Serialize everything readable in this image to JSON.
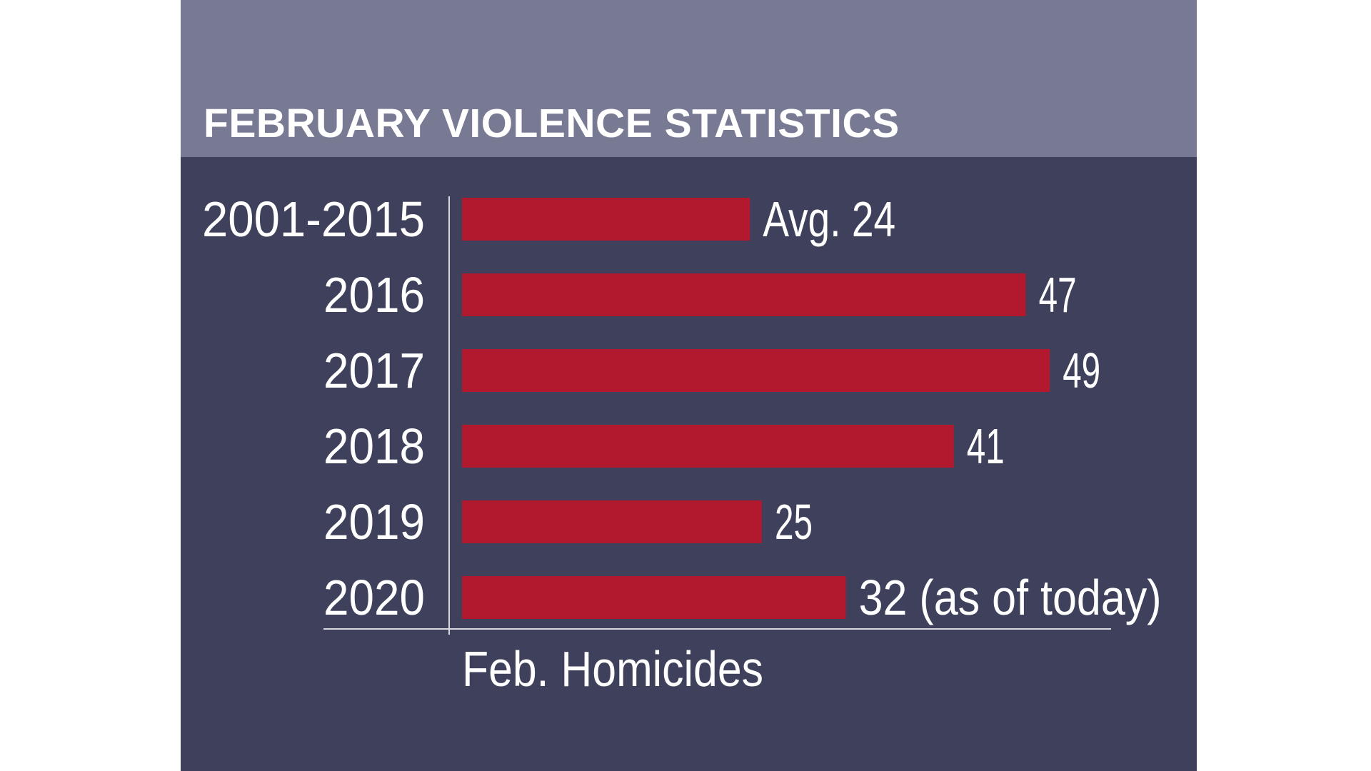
{
  "chart_data": {
    "type": "bar",
    "orientation": "horizontal",
    "title": "FEBRUARY VIOLENCE STATISTICS",
    "xlabel": "Feb. Homicides",
    "categories": [
      "2001-2015",
      "2016",
      "2017",
      "2018",
      "2019",
      "2020"
    ],
    "values": [
      24,
      47,
      49,
      41,
      25,
      32
    ],
    "data_labels": [
      "Avg. 24",
      "47",
      "49",
      "41",
      "25",
      "32 (as of today)"
    ],
    "xlim": [
      0,
      49
    ],
    "grid": false,
    "legend": "none",
    "colors": {
      "bar": "#b2192e",
      "background": "#3e405c",
      "header": "#787a94",
      "text": "#ffffff",
      "axis": "#d8d8e0"
    }
  }
}
